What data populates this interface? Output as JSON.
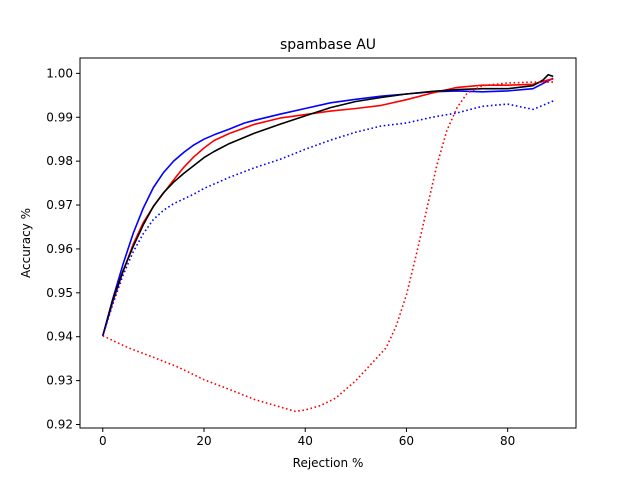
{
  "chart_data": {
    "type": "line",
    "title": "spambase AU",
    "xlabel": "Rejection %",
    "ylabel": "Accuracy %",
    "xlim": [
      -4.5,
      93.5
    ],
    "ylim": [
      0.9192,
      1.0035
    ],
    "xticks": [
      0,
      20,
      40,
      60,
      80
    ],
    "yticks": [
      0.92,
      0.93,
      0.94,
      0.95,
      0.96,
      0.97,
      0.98,
      0.99,
      1.0
    ],
    "ytick_labels": [
      "0.92",
      "0.93",
      "0.94",
      "0.95",
      "0.96",
      "0.97",
      "0.98",
      "0.99",
      "1.00"
    ],
    "grid": false,
    "legend": "none",
    "series": [
      {
        "color": "#0000ff",
        "style": "solid",
        "points": [
          [
            0,
            0.9402
          ],
          [
            2,
            0.9487
          ],
          [
            4,
            0.9565
          ],
          [
            6,
            0.9635
          ],
          [
            8,
            0.9693
          ],
          [
            10,
            0.974
          ],
          [
            12,
            0.9774
          ],
          [
            14,
            0.98
          ],
          [
            16,
            0.982
          ],
          [
            18,
            0.9837
          ],
          [
            20,
            0.985
          ],
          [
            22,
            0.986
          ],
          [
            25,
            0.9873
          ],
          [
            28,
            0.9887
          ],
          [
            30,
            0.9893
          ],
          [
            35,
            0.9907
          ],
          [
            40,
            0.992
          ],
          [
            45,
            0.9933
          ],
          [
            50,
            0.9941
          ],
          [
            55,
            0.9948
          ],
          [
            60,
            0.9953
          ],
          [
            65,
            0.9958
          ],
          [
            70,
            0.996
          ],
          [
            75,
            0.9958
          ],
          [
            80,
            0.996
          ],
          [
            85,
            0.9965
          ],
          [
            88,
            0.9983
          ],
          [
            89,
            0.9989
          ]
        ]
      },
      {
        "color": "#ff0000",
        "style": "solid",
        "points": [
          [
            0,
            0.9402
          ],
          [
            2,
            0.948
          ],
          [
            4,
            0.9548
          ],
          [
            6,
            0.961
          ],
          [
            8,
            0.966
          ],
          [
            10,
            0.9697
          ],
          [
            12,
            0.9727
          ],
          [
            14,
            0.9757
          ],
          [
            16,
            0.9786
          ],
          [
            18,
            0.981
          ],
          [
            20,
            0.983
          ],
          [
            22,
            0.9847
          ],
          [
            25,
            0.9863
          ],
          [
            30,
            0.9884
          ],
          [
            35,
            0.9898
          ],
          [
            40,
            0.9906
          ],
          [
            45,
            0.9914
          ],
          [
            50,
            0.992
          ],
          [
            55,
            0.9927
          ],
          [
            60,
            0.994
          ],
          [
            65,
            0.9955
          ],
          [
            70,
            0.9968
          ],
          [
            75,
            0.9973
          ],
          [
            80,
            0.9973
          ],
          [
            85,
            0.9975
          ],
          [
            88,
            0.9985
          ],
          [
            89,
            0.9987
          ]
        ]
      },
      {
        "color": "#000000",
        "style": "solid",
        "points": [
          [
            0,
            0.9402
          ],
          [
            2,
            0.9485
          ],
          [
            4,
            0.955
          ],
          [
            6,
            0.9605
          ],
          [
            8,
            0.9655
          ],
          [
            10,
            0.9697
          ],
          [
            12,
            0.9728
          ],
          [
            14,
            0.9752
          ],
          [
            16,
            0.9772
          ],
          [
            18,
            0.979
          ],
          [
            20,
            0.9808
          ],
          [
            22,
            0.9822
          ],
          [
            25,
            0.984
          ],
          [
            30,
            0.9864
          ],
          [
            35,
            0.9884
          ],
          [
            40,
            0.9903
          ],
          [
            45,
            0.9922
          ],
          [
            50,
            0.9936
          ],
          [
            55,
            0.9945
          ],
          [
            60,
            0.9953
          ],
          [
            65,
            0.9959
          ],
          [
            70,
            0.9963
          ],
          [
            75,
            0.9965
          ],
          [
            80,
            0.9965
          ],
          [
            85,
            0.9972
          ],
          [
            87,
            0.9985
          ],
          [
            88,
            0.9997
          ],
          [
            89,
            0.9993
          ]
        ]
      },
      {
        "color": "#0000ff",
        "style": "dotted",
        "points": [
          [
            0,
            0.9402
          ],
          [
            2,
            0.9475
          ],
          [
            4,
            0.954
          ],
          [
            6,
            0.9593
          ],
          [
            8,
            0.9635
          ],
          [
            10,
            0.9667
          ],
          [
            12,
            0.9688
          ],
          [
            14,
            0.9703
          ],
          [
            16,
            0.9714
          ],
          [
            18,
            0.9725
          ],
          [
            20,
            0.9738
          ],
          [
            25,
            0.9763
          ],
          [
            30,
            0.9785
          ],
          [
            35,
            0.9804
          ],
          [
            40,
            0.9827
          ],
          [
            45,
            0.9848
          ],
          [
            50,
            0.9866
          ],
          [
            55,
            0.988
          ],
          [
            60,
            0.9887
          ],
          [
            65,
            0.99
          ],
          [
            70,
            0.991
          ],
          [
            75,
            0.9925
          ],
          [
            80,
            0.993
          ],
          [
            85,
            0.9918
          ],
          [
            89,
            0.9937
          ]
        ]
      },
      {
        "color": "#ff0000",
        "style": "dotted",
        "points": [
          [
            0,
            0.9402
          ],
          [
            5,
            0.9375
          ],
          [
            10,
            0.9353
          ],
          [
            15,
            0.933
          ],
          [
            20,
            0.9302
          ],
          [
            25,
            0.928
          ],
          [
            30,
            0.9257
          ],
          [
            35,
            0.924
          ],
          [
            38,
            0.923
          ],
          [
            40,
            0.9233
          ],
          [
            43,
            0.9243
          ],
          [
            46,
            0.926
          ],
          [
            50,
            0.93
          ],
          [
            54,
            0.935
          ],
          [
            56,
            0.9375
          ],
          [
            58,
            0.9425
          ],
          [
            60,
            0.9495
          ],
          [
            62,
            0.959
          ],
          [
            64,
            0.969
          ],
          [
            66,
            0.979
          ],
          [
            68,
            0.987
          ],
          [
            70,
            0.9922
          ],
          [
            72,
            0.9955
          ],
          [
            75,
            0.9972
          ],
          [
            80,
            0.9978
          ],
          [
            85,
            0.998
          ],
          [
            89,
            0.998
          ]
        ]
      }
    ]
  }
}
